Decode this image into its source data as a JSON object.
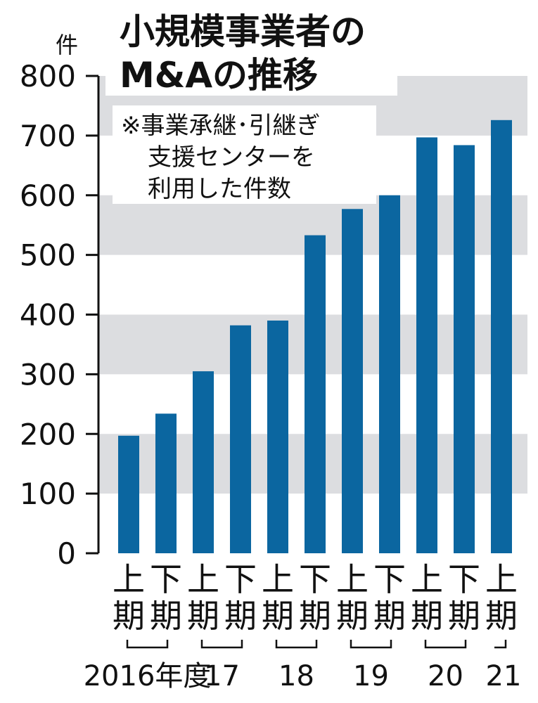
{
  "chart_data": {
    "type": "bar",
    "title_lines": [
      "小規模事業者の",
      "M&Aの推移"
    ],
    "note_lines": [
      "※事業承継･引継ぎ",
      "支援センターを",
      "利用した件数"
    ],
    "unit": "件",
    "ylim": [
      0,
      800
    ],
    "yticks": [
      0,
      100,
      200,
      300,
      400,
      500,
      600,
      700,
      800
    ],
    "grid_bands": true,
    "categories": [
      "上期",
      "下期",
      "上期",
      "下期",
      "上期",
      "下期",
      "上期",
      "下期",
      "上期",
      "下期",
      "上期"
    ],
    "values": [
      197,
      234,
      305,
      382,
      390,
      533,
      577,
      600,
      697,
      684,
      726
    ],
    "year_groups": [
      {
        "label": "2016年度",
        "start": 0,
        "end": 1
      },
      {
        "label": "17",
        "start": 2,
        "end": 3
      },
      {
        "label": "18",
        "start": 4,
        "end": 5
      },
      {
        "label": "19",
        "start": 6,
        "end": 7
      },
      {
        "label": "20",
        "start": 8,
        "end": 9
      },
      {
        "label": "21",
        "start": 10,
        "end": 10
      }
    ],
    "colors": {
      "bar": "#0b66a0",
      "band": "#dcdde0",
      "text": "#111111"
    }
  }
}
